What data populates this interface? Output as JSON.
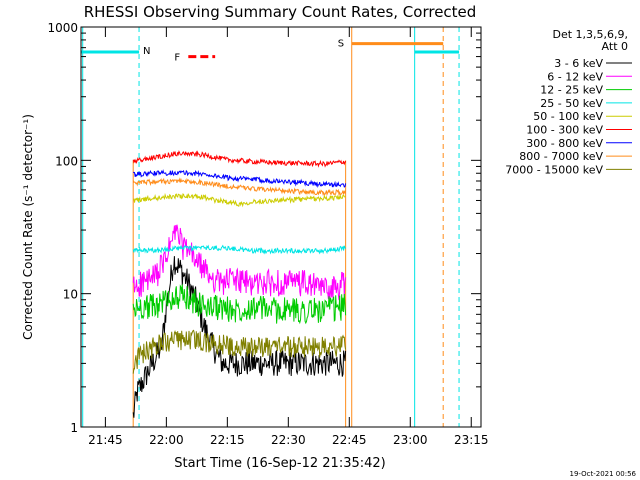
{
  "chart_data": {
    "type": "line",
    "title": "RHESSI Observing Summary Count Rates, Corrected",
    "xlabel": "Start Time (16-Sep-12 21:35:42)",
    "ylabel": "Corrected Count Rate (s⁻¹ detector⁻¹)",
    "yscale": "log",
    "ylim": [
      1,
      1000
    ],
    "xlim_minutes": [
      21.65,
      23.29
    ],
    "x_tick_labels": [
      "21:45",
      "22:00",
      "22:15",
      "22:30",
      "22:45",
      "23:00",
      "23:15"
    ],
    "x_tick_minutes": [
      21.75,
      22.0,
      22.25,
      22.5,
      22.75,
      23.0,
      23.25
    ],
    "y_tick_labels": [
      "1",
      "10",
      "100",
      "1000"
    ],
    "y_tick_values": [
      1,
      10,
      100,
      1000
    ],
    "legend": {
      "placement": "top-right, outside plot",
      "header": [
        "Det 1,3,5,6,9,",
        "Att 0"
      ]
    },
    "series": [
      {
        "name": "3 - 6 keV",
        "color": "#000000",
        "profile": [
          [
            21.864,
            1.2
          ],
          [
            21.88,
            1.8
          ],
          [
            21.92,
            2.5
          ],
          [
            21.98,
            4
          ],
          [
            22.0,
            8
          ],
          [
            22.03,
            18
          ],
          [
            22.06,
            15
          ],
          [
            22.09,
            12
          ],
          [
            22.12,
            9
          ],
          [
            22.15,
            6
          ],
          [
            22.19,
            4
          ],
          [
            22.23,
            3
          ],
          [
            22.27,
            3
          ],
          [
            22.33,
            3
          ],
          [
            22.4,
            3
          ],
          [
            22.48,
            3
          ],
          [
            22.56,
            3
          ],
          [
            22.64,
            3
          ],
          [
            22.7,
            3
          ],
          [
            22.735,
            3
          ]
        ]
      },
      {
        "name": "6 - 12 keV",
        "color": "#ff00ff",
        "profile": [
          [
            21.864,
            11
          ],
          [
            21.9,
            12
          ],
          [
            21.95,
            13
          ],
          [
            21.99,
            17
          ],
          [
            22.02,
            24
          ],
          [
            22.04,
            30
          ],
          [
            22.07,
            22
          ],
          [
            22.1,
            20
          ],
          [
            22.13,
            17
          ],
          [
            22.17,
            14
          ],
          [
            22.22,
            12
          ],
          [
            22.27,
            13
          ],
          [
            22.33,
            12
          ],
          [
            22.4,
            12
          ],
          [
            22.48,
            12
          ],
          [
            22.56,
            12
          ],
          [
            22.64,
            11
          ],
          [
            22.7,
            11
          ],
          [
            22.735,
            12
          ]
        ]
      },
      {
        "name": "12 - 25 keV",
        "color": "#00cc00",
        "profile": [
          [
            21.864,
            7.5
          ],
          [
            21.9,
            8
          ],
          [
            21.95,
            8
          ],
          [
            22.0,
            9
          ],
          [
            22.05,
            9.5
          ],
          [
            22.1,
            9
          ],
          [
            22.15,
            8
          ],
          [
            22.2,
            8
          ],
          [
            22.27,
            7.5
          ],
          [
            22.35,
            8
          ],
          [
            22.45,
            7.5
          ],
          [
            22.55,
            7.5
          ],
          [
            22.65,
            7.5
          ],
          [
            22.735,
            8
          ]
        ]
      },
      {
        "name": "25 - 50 keV",
        "color": "#00e5e5",
        "profile": [
          [
            21.864,
            21
          ],
          [
            21.95,
            21
          ],
          [
            22.05,
            22
          ],
          [
            22.15,
            22
          ],
          [
            22.25,
            22
          ],
          [
            22.35,
            21
          ],
          [
            22.45,
            21
          ],
          [
            22.55,
            21
          ],
          [
            22.65,
            21
          ],
          [
            22.735,
            22
          ]
        ]
      },
      {
        "name": "50 - 100 keV",
        "color": "#cccc00",
        "profile": [
          [
            21.864,
            50
          ],
          [
            21.95,
            52
          ],
          [
            22.05,
            54
          ],
          [
            22.15,
            53
          ],
          [
            22.2,
            50
          ],
          [
            22.25,
            49
          ],
          [
            22.3,
            47
          ],
          [
            22.35,
            49
          ],
          [
            22.45,
            50
          ],
          [
            22.55,
            51
          ],
          [
            22.65,
            52
          ],
          [
            22.735,
            53
          ]
        ]
      },
      {
        "name": "100 - 300 keV",
        "color": "#ff0000",
        "profile": [
          [
            21.864,
            98
          ],
          [
            21.95,
            105
          ],
          [
            22.05,
            113
          ],
          [
            22.15,
            110
          ],
          [
            22.25,
            101
          ],
          [
            22.35,
            98
          ],
          [
            22.45,
            96
          ],
          [
            22.55,
            95
          ],
          [
            22.65,
            94
          ],
          [
            22.735,
            98
          ]
        ]
      },
      {
        "name": "300 - 800 keV",
        "color": "#0000ff",
        "profile": [
          [
            21.864,
            78
          ],
          [
            21.95,
            80
          ],
          [
            22.05,
            81
          ],
          [
            22.15,
            79
          ],
          [
            22.25,
            74
          ],
          [
            22.35,
            72
          ],
          [
            22.45,
            70
          ],
          [
            22.55,
            68
          ],
          [
            22.65,
            66
          ],
          [
            22.735,
            65
          ]
        ]
      },
      {
        "name": "800 - 7000 keV",
        "color": "#ff8c1a",
        "profile": [
          [
            21.864,
            68
          ],
          [
            21.95,
            69
          ],
          [
            22.05,
            70
          ],
          [
            22.15,
            68
          ],
          [
            22.25,
            64
          ],
          [
            22.35,
            61
          ],
          [
            22.45,
            60
          ],
          [
            22.55,
            58
          ],
          [
            22.65,
            57
          ],
          [
            22.735,
            58
          ]
        ]
      },
      {
        "name": "7000 - 15000 keV",
        "color": "#808000",
        "profile": [
          [
            21.864,
            3
          ],
          [
            21.9,
            3.5
          ],
          [
            21.95,
            4
          ],
          [
            22.0,
            4.3
          ],
          [
            22.1,
            4.5
          ],
          [
            22.2,
            4.2
          ],
          [
            22.3,
            4
          ],
          [
            22.4,
            4
          ],
          [
            22.5,
            4
          ],
          [
            22.6,
            4
          ],
          [
            22.7,
            4
          ],
          [
            22.735,
            4.2
          ]
        ]
      }
    ],
    "annotations": {
      "flare_label": "F",
      "flare_marker_color": "#ff0000",
      "flare_marker_y": 600,
      "flare_marker_x": [
        22.09,
        22.2
      ],
      "night_label": "N",
      "night_color": "#00e5e5",
      "night_level_y": 650,
      "night_intervals": [
        [
          21.65,
          21.888
        ],
        [
          23.018,
          23.2
        ]
      ],
      "night_dashed_x": [
        21.888,
        23.2
      ],
      "night_solid_x": [
        21.657,
        23.018
      ],
      "saa_label": "S",
      "saa_color": "#ff8c1a",
      "saa_level_y": 750,
      "saa_interval": [
        22.76,
        23.135
      ],
      "saa_solid_x": [
        22.76
      ],
      "saa_dashed_x": [
        23.135
      ],
      "observation_edges_x": [
        21.864,
        22.735
      ]
    },
    "grid": false
  },
  "footer_date": "19-Oct-2021 00:56"
}
